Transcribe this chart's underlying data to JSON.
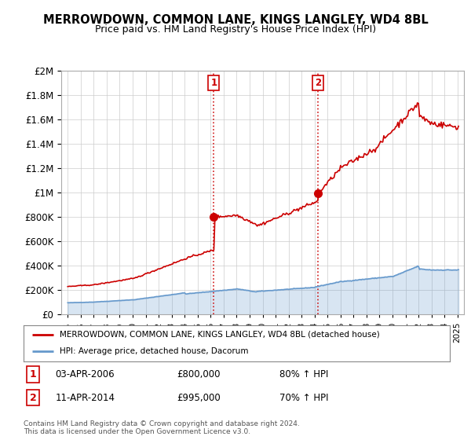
{
  "title": "MERROWDOWN, COMMON LANE, KINGS LANGLEY, WD4 8BL",
  "subtitle": "Price paid vs. HM Land Registry's House Price Index (HPI)",
  "legend_line1": "MERROWDOWN, COMMON LANE, KINGS LANGLEY, WD4 8BL (detached house)",
  "legend_line2": "HPI: Average price, detached house, Dacorum",
  "annotation1_label": "1",
  "annotation1_date": "03-APR-2006",
  "annotation1_price": "£800,000",
  "annotation1_hpi": "80% ↑ HPI",
  "annotation1_year": 2006.25,
  "annotation1_value": 800000,
  "annotation2_label": "2",
  "annotation2_date": "11-APR-2014",
  "annotation2_price": "£995,000",
  "annotation2_hpi": "70% ↑ HPI",
  "annotation2_year": 2014.27,
  "annotation2_value": 995000,
  "footer1": "Contains HM Land Registry data © Crown copyright and database right 2024.",
  "footer2": "This data is licensed under the Open Government Licence v3.0.",
  "red_color": "#cc0000",
  "blue_color": "#6699cc",
  "grid_color": "#cccccc",
  "background_color": "#ffffff",
  "ylim": [
    0,
    2000000
  ],
  "yticks": [
    0,
    200000,
    400000,
    600000,
    800000,
    1000000,
    1200000,
    1400000,
    1600000,
    1800000,
    2000000
  ],
  "xlim_start": 1994.5,
  "xlim_end": 2025.5
}
